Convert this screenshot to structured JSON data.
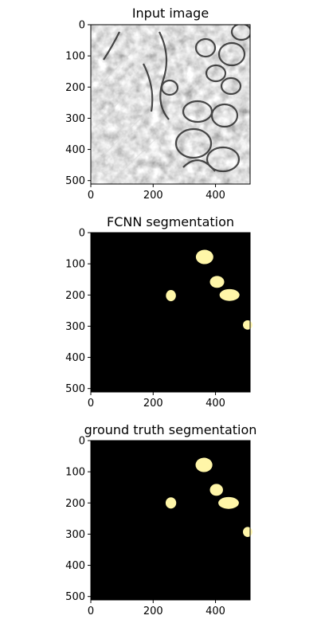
{
  "chart_data": [
    {
      "type": "heatmap",
      "title": "Input image",
      "xlim": [
        0,
        511
      ],
      "ylim": [
        511,
        0
      ],
      "xticks": [
        "0",
        "200",
        "400"
      ],
      "yticks": [
        "0",
        "100",
        "200",
        "300",
        "400",
        "500"
      ],
      "xtick_values": [
        0,
        200,
        400
      ],
      "ytick_values": [
        0,
        100,
        200,
        300,
        400,
        500
      ],
      "colormap": "gray",
      "content": "grayscale electron microscopy image"
    },
    {
      "type": "heatmap",
      "title": "FCNN segmentation",
      "xlim": [
        0,
        511
      ],
      "ylim": [
        511,
        0
      ],
      "xticks": [
        "0",
        "200",
        "400"
      ],
      "yticks": [
        "0",
        "100",
        "200",
        "300",
        "400",
        "500"
      ],
      "xtick_values": [
        0,
        200,
        400
      ],
      "ytick_values": [
        0,
        100,
        200,
        300,
        400,
        500
      ],
      "background_color": "#000000",
      "foreground_color": "#fff6a8",
      "blobs": [
        {
          "cx": 365,
          "cy": 78,
          "rx": 28,
          "ry": 23
        },
        {
          "cx": 405,
          "cy": 158,
          "rx": 23,
          "ry": 19
        },
        {
          "cx": 445,
          "cy": 200,
          "rx": 32,
          "ry": 19
        },
        {
          "cx": 257,
          "cy": 202,
          "rx": 16,
          "ry": 18
        },
        {
          "cx": 503,
          "cy": 296,
          "rx": 15,
          "ry": 15
        }
      ]
    },
    {
      "type": "heatmap",
      "title": "ground truth segmentation",
      "xlim": [
        0,
        511
      ],
      "ylim": [
        511,
        0
      ],
      "xticks": [
        "0",
        "200",
        "400"
      ],
      "yticks": [
        "0",
        "100",
        "200",
        "300",
        "400",
        "500"
      ],
      "xtick_values": [
        0,
        200,
        400
      ],
      "ytick_values": [
        0,
        100,
        200,
        300,
        400,
        500
      ],
      "background_color": "#000000",
      "foreground_color": "#fff6a8",
      "blobs": [
        {
          "cx": 363,
          "cy": 78,
          "rx": 27,
          "ry": 23
        },
        {
          "cx": 403,
          "cy": 158,
          "rx": 21,
          "ry": 19
        },
        {
          "cx": 442,
          "cy": 200,
          "rx": 33,
          "ry": 19
        },
        {
          "cx": 257,
          "cy": 200,
          "rx": 17,
          "ry": 18
        },
        {
          "cx": 503,
          "cy": 293,
          "rx": 15,
          "ry": 16
        }
      ]
    }
  ]
}
